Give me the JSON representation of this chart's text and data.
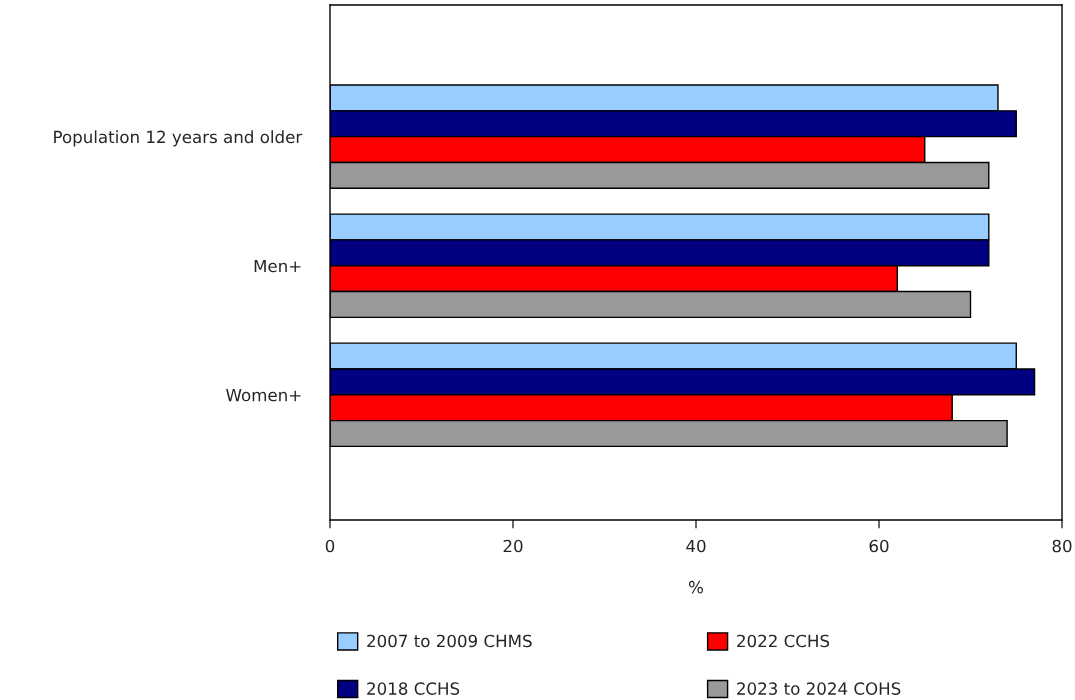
{
  "chart_data": {
    "type": "bar",
    "orientation": "horizontal",
    "xlabel": "%",
    "categories": [
      "Population 12 years and older",
      "Men+",
      "Women+"
    ],
    "series": [
      {
        "name": "2007 to 2009 CHMS",
        "color": "#99ccff",
        "values": [
          73,
          72,
          75
        ]
      },
      {
        "name": "2018 CCHS",
        "color": "#000080",
        "values": [
          75,
          72,
          77
        ]
      },
      {
        "name": "2022 CCHS",
        "color": "#ff0000",
        "values": [
          65,
          62,
          68
        ]
      },
      {
        "name": "2023 to 2024 COHS",
        "color": "#999999",
        "values": [
          72,
          70,
          74
        ]
      }
    ],
    "xlim": [
      0,
      80
    ],
    "xticks": [
      0,
      20,
      40,
      60,
      80
    ],
    "grid": false,
    "legend": "bottom"
  }
}
